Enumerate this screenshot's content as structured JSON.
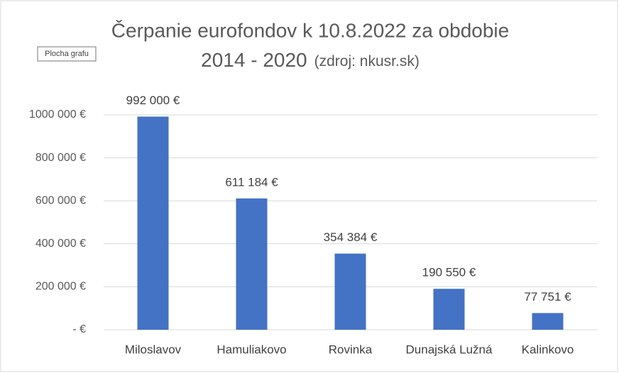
{
  "chart_data": {
    "type": "bar",
    "title": [
      "Čerpanie eurofondov k 10.8.2022 za obdobie",
      "2014 - 2020"
    ],
    "subtitle": "(zdroj: nkusr.sk)",
    "tooltip": "Plocha grafu",
    "categories": [
      "Miloslavov",
      "Hamuliakovo",
      "Rovinka",
      "Dunajská Lužná",
      "Kalinkovo"
    ],
    "values": [
      992000,
      611184,
      354384,
      190550,
      77751
    ],
    "value_labels": [
      "992 000 €",
      "611 184 €",
      "354 384 €",
      "190 550 €",
      "77 751 €"
    ],
    "color": "#4472c4",
    "ylim": [
      0,
      1000000
    ],
    "yticks": [
      {
        "value": 0,
        "label": "-   €"
      },
      {
        "value": 200000,
        "label": "200 000 €"
      },
      {
        "value": 400000,
        "label": "400 000 €"
      },
      {
        "value": 600000,
        "label": "600 000 €"
      },
      {
        "value": 800000,
        "label": "800 000 €"
      },
      {
        "value": 1000000,
        "label": "1000 000 €"
      }
    ],
    "grid": true
  }
}
